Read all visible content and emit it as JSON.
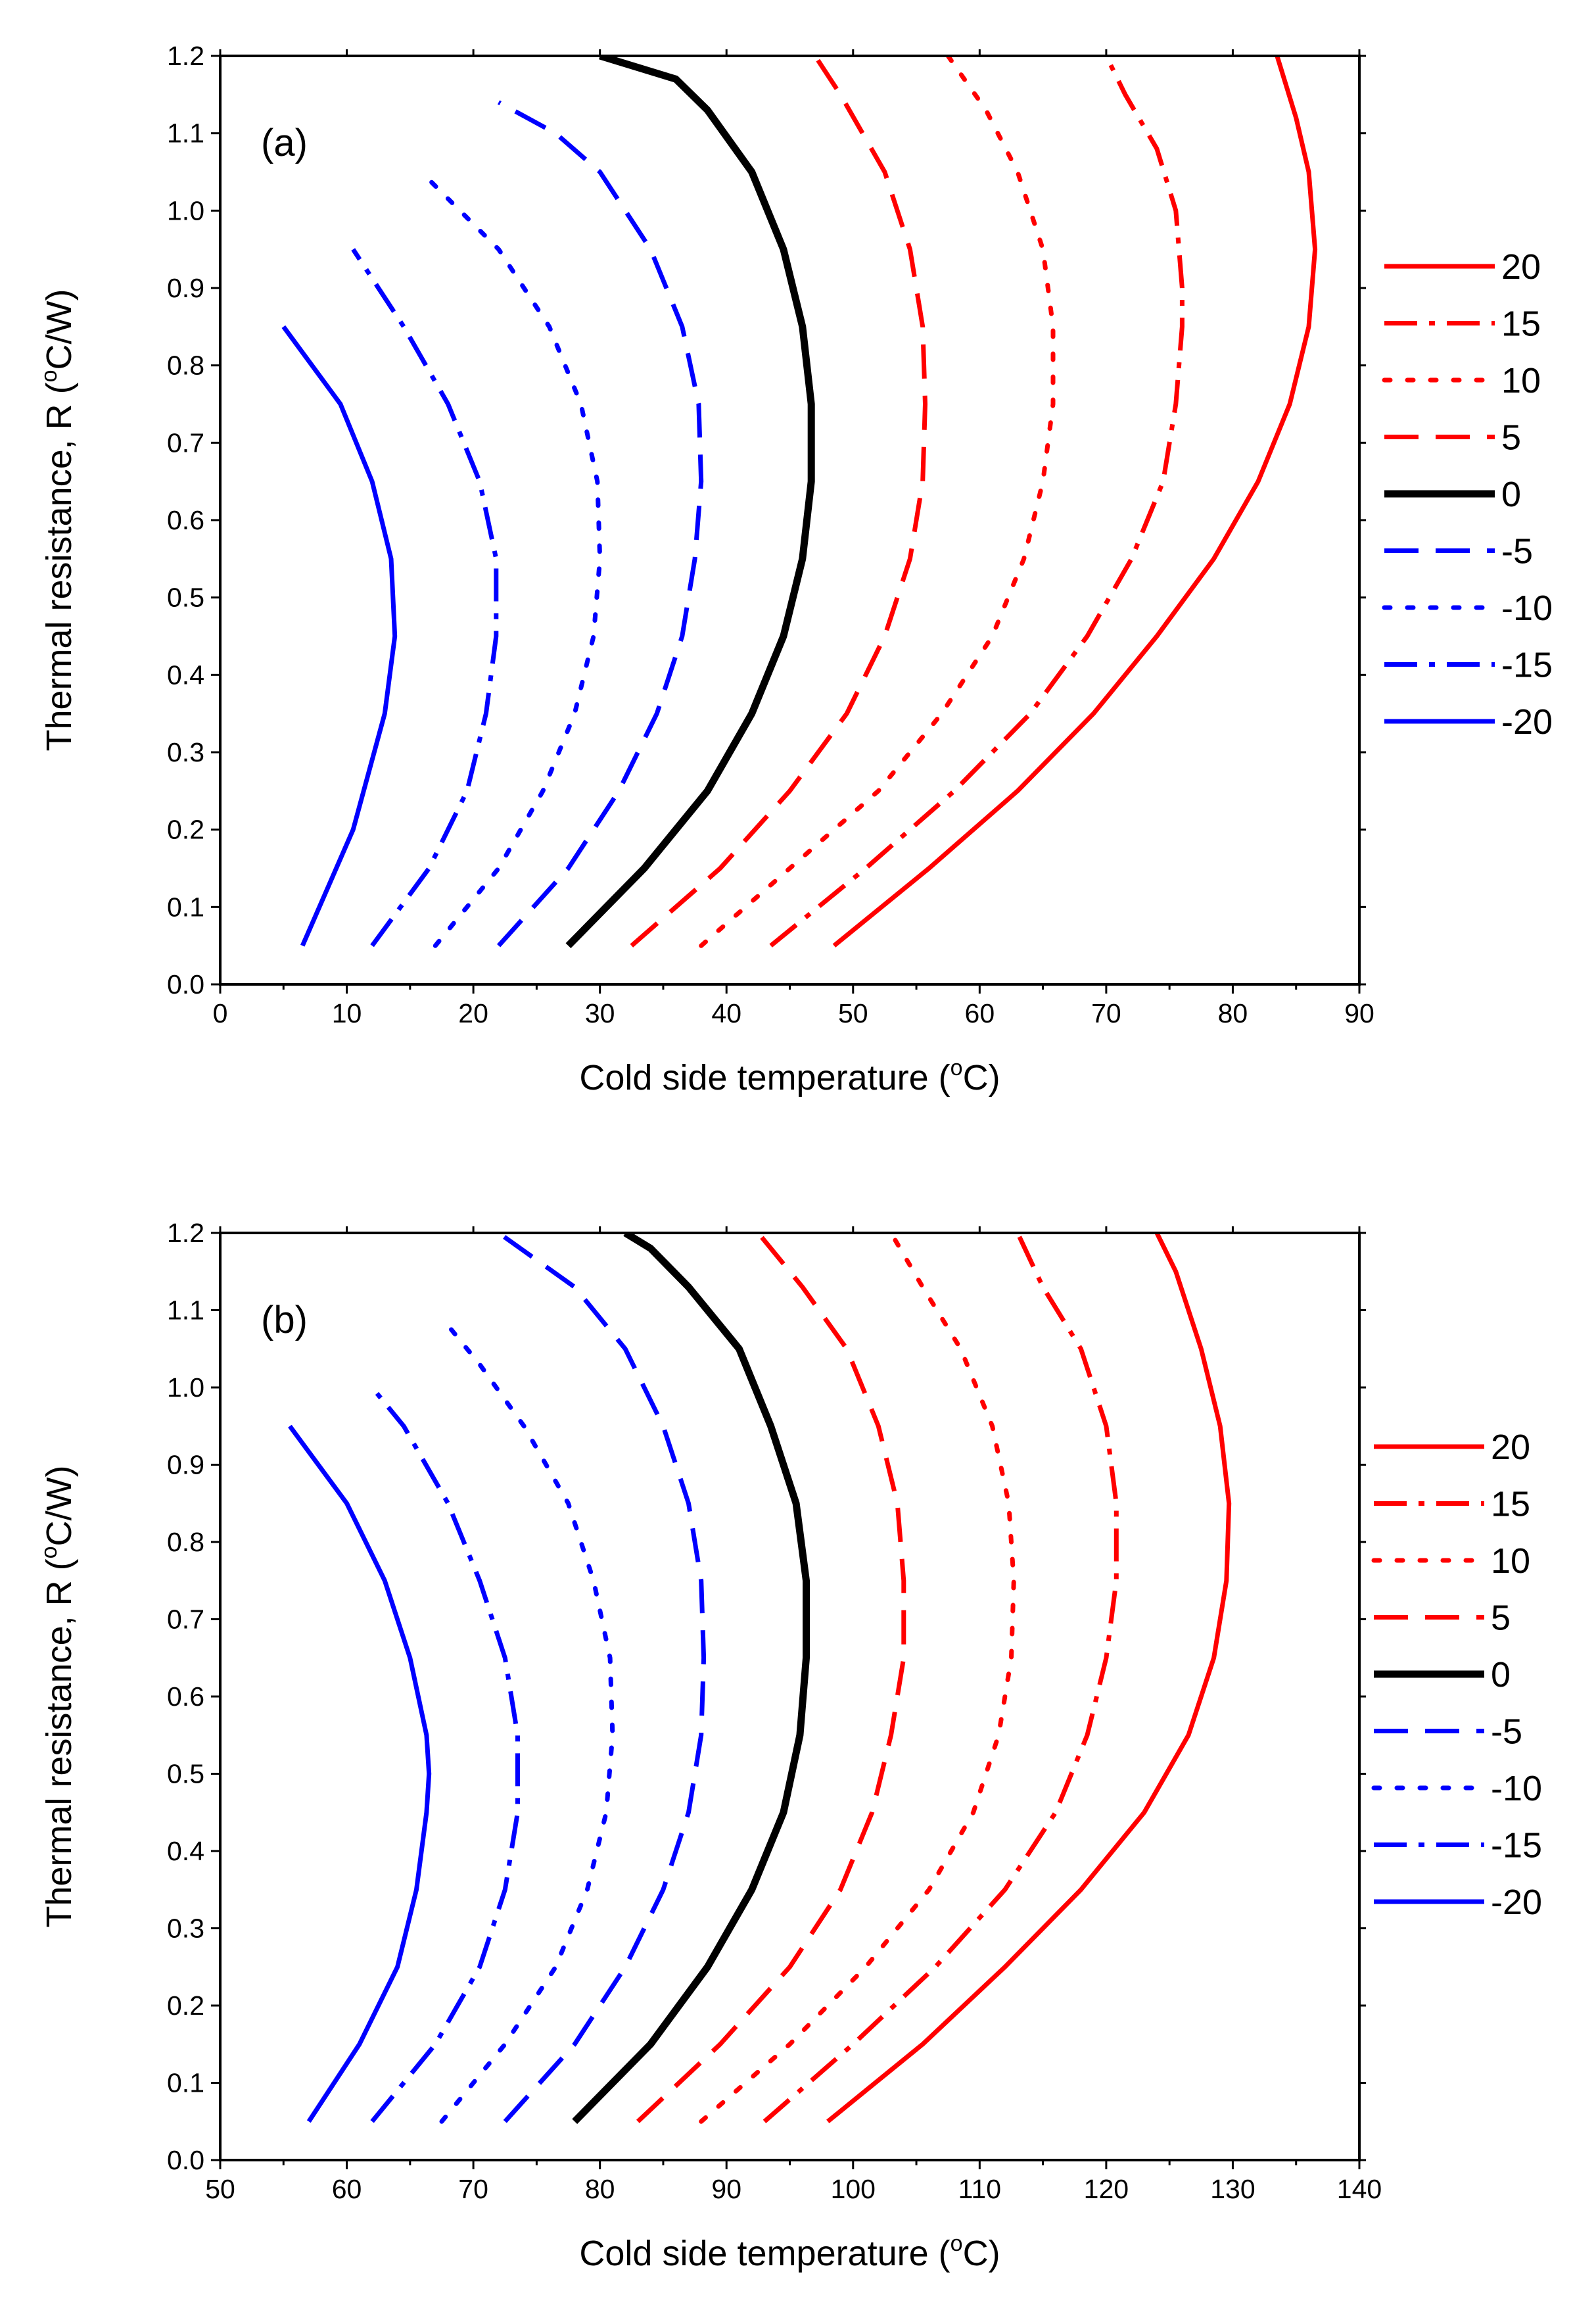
{
  "chart_data": [
    {
      "type": "line",
      "panel_label": "(a)",
      "xlabel_pre": "Cold side temperature (",
      "xlabel_sup": "o",
      "xlabel_post": "C)",
      "ylabel_pre": "Thermal resistance, R (",
      "ylabel_sup": "o",
      "ylabel_post": "C/W)",
      "xlim": [
        0,
        90
      ],
      "ylim": [
        0.0,
        1.2
      ],
      "x_ticks": [
        "0",
        "10",
        "20",
        "30",
        "40",
        "50",
        "60",
        "70",
        "80",
        "90"
      ],
      "y_ticks": [
        "0.0",
        "0.1",
        "0.2",
        "0.3",
        "0.4",
        "0.5",
        "0.6",
        "0.7",
        "0.8",
        "0.9",
        "1.0",
        "1.1",
        "1.2"
      ],
      "legend_position": "right",
      "series": [
        {
          "name": "20",
          "color": "#ff0000",
          "style": "solid",
          "points": [
            [
              48.5,
              0.05
            ],
            [
              56,
              0.15
            ],
            [
              63,
              0.25
            ],
            [
              69,
              0.35
            ],
            [
              74,
              0.45
            ],
            [
              78.5,
              0.55
            ],
            [
              82,
              0.65
            ],
            [
              84.5,
              0.75
            ],
            [
              86,
              0.85
            ],
            [
              86.5,
              0.95
            ],
            [
              86,
              1.05
            ],
            [
              85,
              1.12
            ],
            [
              83.5,
              1.2
            ]
          ]
        },
        {
          "name": "15",
          "color": "#ff0000",
          "style": "dashdot",
          "points": [
            [
              43.5,
              0.05
            ],
            [
              51,
              0.15
            ],
            [
              58,
              0.25
            ],
            [
              64,
              0.35
            ],
            [
              68.5,
              0.45
            ],
            [
              72,
              0.55
            ],
            [
              74.5,
              0.65
            ],
            [
              75.5,
              0.75
            ],
            [
              76,
              0.85
            ],
            [
              76,
              0.9
            ],
            [
              75.5,
              1.0
            ],
            [
              74,
              1.08
            ],
            [
              71.5,
              1.15
            ],
            [
              70,
              1.2
            ]
          ]
        },
        {
          "name": "10",
          "color": "#ff0000",
          "style": "dotted",
          "points": [
            [
              38,
              0.05
            ],
            [
              45,
              0.15
            ],
            [
              52,
              0.25
            ],
            [
              57,
              0.35
            ],
            [
              61,
              0.45
            ],
            [
              63.5,
              0.55
            ],
            [
              65,
              0.65
            ],
            [
              65.8,
              0.75
            ],
            [
              65.8,
              0.85
            ],
            [
              65,
              0.95
            ],
            [
              63,
              1.05
            ],
            [
              60.5,
              1.13
            ],
            [
              57.5,
              1.2
            ]
          ]
        },
        {
          "name": "5",
          "color": "#ff0000",
          "style": "dashed",
          "points": [
            [
              32.5,
              0.05
            ],
            [
              39.5,
              0.15
            ],
            [
              45,
              0.25
            ],
            [
              49.5,
              0.35
            ],
            [
              52.5,
              0.45
            ],
            [
              54.5,
              0.55
            ],
            [
              55.5,
              0.65
            ],
            [
              55.7,
              0.75
            ],
            [
              55.5,
              0.85
            ],
            [
              54.5,
              0.95
            ],
            [
              52.5,
              1.05
            ],
            [
              49,
              1.15
            ],
            [
              47,
              1.2
            ]
          ]
        },
        {
          "name": "0",
          "color": "#000000",
          "style": "solid",
          "points": [
            [
              27.5,
              0.05
            ],
            [
              33.5,
              0.15
            ],
            [
              38.5,
              0.25
            ],
            [
              42,
              0.35
            ],
            [
              44.5,
              0.45
            ],
            [
              46,
              0.55
            ],
            [
              46.7,
              0.65
            ],
            [
              46.7,
              0.75
            ],
            [
              46,
              0.85
            ],
            [
              44.5,
              0.95
            ],
            [
              42,
              1.05
            ],
            [
              38.5,
              1.13
            ],
            [
              36,
              1.17
            ],
            [
              30,
              1.2
            ]
          ]
        },
        {
          "name": "-5",
          "color": "#0000ff",
          "style": "dashed",
          "points": [
            [
              22,
              0.05
            ],
            [
              27.5,
              0.15
            ],
            [
              31.5,
              0.25
            ],
            [
              34.5,
              0.35
            ],
            [
              36.5,
              0.45
            ],
            [
              37.5,
              0.55
            ],
            [
              38,
              0.65
            ],
            [
              37.8,
              0.75
            ],
            [
              36.5,
              0.85
            ],
            [
              34,
              0.95
            ],
            [
              30,
              1.05
            ],
            [
              26.5,
              1.1
            ],
            [
              22,
              1.14
            ]
          ]
        },
        {
          "name": "-10",
          "color": "#0000ff",
          "style": "dotted",
          "points": [
            [
              17,
              0.05
            ],
            [
              22,
              0.15
            ],
            [
              25.5,
              0.25
            ],
            [
              28,
              0.35
            ],
            [
              29.5,
              0.45
            ],
            [
              30,
              0.55
            ],
            [
              29.8,
              0.65
            ],
            [
              28.5,
              0.75
            ],
            [
              26,
              0.85
            ],
            [
              22,
              0.95
            ],
            [
              16.5,
              1.04
            ]
          ]
        },
        {
          "name": "-15",
          "color": "#0000ff",
          "style": "dashdot",
          "points": [
            [
              12,
              0.05
            ],
            [
              16.5,
              0.15
            ],
            [
              19.5,
              0.25
            ],
            [
              21,
              0.35
            ],
            [
              21.8,
              0.45
            ],
            [
              21.8,
              0.55
            ],
            [
              20.5,
              0.65
            ],
            [
              18,
              0.75
            ],
            [
              14.5,
              0.85
            ],
            [
              10.5,
              0.95
            ]
          ]
        },
        {
          "name": "-20",
          "color": "#0000ff",
          "style": "solid",
          "points": [
            [
              6.5,
              0.05
            ],
            [
              10.5,
              0.2
            ],
            [
              13,
              0.35
            ],
            [
              13.8,
              0.45
            ],
            [
              13.5,
              0.55
            ],
            [
              12,
              0.65
            ],
            [
              9.5,
              0.75
            ],
            [
              5,
              0.85
            ]
          ]
        }
      ]
    },
    {
      "type": "line",
      "panel_label": "(b)",
      "xlabel_pre": "Cold side temperature (",
      "xlabel_sup": "o",
      "xlabel_post": "C)",
      "ylabel_pre": "Thermal resistance, R (",
      "ylabel_sup": "o",
      "ylabel_post": "C/W)",
      "xlim": [
        50,
        140
      ],
      "ylim": [
        0.0,
        1.2
      ],
      "x_ticks": [
        "50",
        "60",
        "70",
        "80",
        "90",
        "100",
        "110",
        "120",
        "130",
        "140"
      ],
      "y_ticks": [
        "0.0",
        "0.1",
        "0.2",
        "0.3",
        "0.4",
        "0.5",
        "0.6",
        "0.7",
        "0.8",
        "0.9",
        "1.0",
        "1.1",
        "1.2"
      ],
      "legend_position": "right",
      "series": [
        {
          "name": "20",
          "color": "#ff0000",
          "style": "solid",
          "points": [
            [
              98,
              0.05
            ],
            [
              105.5,
              0.15
            ],
            [
              112,
              0.25
            ],
            [
              118,
              0.35
            ],
            [
              123,
              0.45
            ],
            [
              126.5,
              0.55
            ],
            [
              128.5,
              0.65
            ],
            [
              129.5,
              0.75
            ],
            [
              129.7,
              0.85
            ],
            [
              129,
              0.95
            ],
            [
              127.5,
              1.05
            ],
            [
              125.5,
              1.15
            ],
            [
              124,
              1.2
            ]
          ]
        },
        {
          "name": "15",
          "color": "#ff0000",
          "style": "dashdot",
          "points": [
            [
              93,
              0.05
            ],
            [
              100,
              0.15
            ],
            [
              106.5,
              0.25
            ],
            [
              112,
              0.35
            ],
            [
              116,
              0.45
            ],
            [
              118.5,
              0.55
            ],
            [
              120,
              0.65
            ],
            [
              120.8,
              0.75
            ],
            [
              120.8,
              0.85
            ],
            [
              120,
              0.95
            ],
            [
              118,
              1.05
            ],
            [
              115,
              1.13
            ],
            [
              113,
              1.2
            ]
          ]
        },
        {
          "name": "10",
          "color": "#ff0000",
          "style": "dotted",
          "points": [
            [
              88,
              0.05
            ],
            [
              95,
              0.15
            ],
            [
              101,
              0.25
            ],
            [
              106,
              0.35
            ],
            [
              109.5,
              0.45
            ],
            [
              111.5,
              0.55
            ],
            [
              112.5,
              0.65
            ],
            [
              112.7,
              0.75
            ],
            [
              112.3,
              0.85
            ],
            [
              111,
              0.95
            ],
            [
              108.5,
              1.05
            ],
            [
              105.5,
              1.13
            ],
            [
              103,
              1.2
            ]
          ]
        },
        {
          "name": "5",
          "color": "#ff0000",
          "style": "dashed",
          "points": [
            [
              83,
              0.05
            ],
            [
              89.5,
              0.15
            ],
            [
              95,
              0.25
            ],
            [
              99,
              0.35
            ],
            [
              101.5,
              0.45
            ],
            [
              103,
              0.55
            ],
            [
              104,
              0.65
            ],
            [
              104,
              0.75
            ],
            [
              103.5,
              0.85
            ],
            [
              102,
              0.95
            ],
            [
              99.5,
              1.05
            ],
            [
              96,
              1.13
            ],
            [
              92.5,
              1.2
            ]
          ]
        },
        {
          "name": "0",
          "color": "#000000",
          "style": "solid",
          "points": [
            [
              78,
              0.05
            ],
            [
              84,
              0.15
            ],
            [
              88.5,
              0.25
            ],
            [
              92,
              0.35
            ],
            [
              94.5,
              0.45
            ],
            [
              95.8,
              0.55
            ],
            [
              96.3,
              0.65
            ],
            [
              96.3,
              0.75
            ],
            [
              95.5,
              0.85
            ],
            [
              93.5,
              0.95
            ],
            [
              91,
              1.05
            ],
            [
              87,
              1.13
            ],
            [
              84,
              1.18
            ],
            [
              82,
              1.2
            ]
          ]
        },
        {
          "name": "-5",
          "color": "#0000ff",
          "style": "dashed",
          "points": [
            [
              72.5,
              0.05
            ],
            [
              78,
              0.15
            ],
            [
              82,
              0.25
            ],
            [
              85,
              0.35
            ],
            [
              87,
              0.45
            ],
            [
              88,
              0.55
            ],
            [
              88.2,
              0.65
            ],
            [
              88,
              0.75
            ],
            [
              87,
              0.85
            ],
            [
              85,
              0.95
            ],
            [
              82,
              1.05
            ],
            [
              78,
              1.13
            ],
            [
              72,
              1.2
            ]
          ]
        },
        {
          "name": "-10",
          "color": "#0000ff",
          "style": "dotted",
          "points": [
            [
              67.5,
              0.05
            ],
            [
              72.5,
              0.15
            ],
            [
              76.5,
              0.25
            ],
            [
              79,
              0.35
            ],
            [
              80.5,
              0.45
            ],
            [
              81,
              0.55
            ],
            [
              80.8,
              0.65
            ],
            [
              79.5,
              0.75
            ],
            [
              77.5,
              0.85
            ],
            [
              74,
              0.95
            ],
            [
              70.5,
              1.03
            ],
            [
              67.5,
              1.09
            ]
          ]
        },
        {
          "name": "-15",
          "color": "#0000ff",
          "style": "dashdot",
          "points": [
            [
              62,
              0.05
            ],
            [
              67,
              0.15
            ],
            [
              70.5,
              0.25
            ],
            [
              72.5,
              0.35
            ],
            [
              73.5,
              0.45
            ],
            [
              73.5,
              0.55
            ],
            [
              72.5,
              0.65
            ],
            [
              70.5,
              0.75
            ],
            [
              68,
              0.85
            ],
            [
              64.5,
              0.95
            ],
            [
              62,
              1.0
            ]
          ]
        },
        {
          "name": "-20",
          "color": "#0000ff",
          "style": "solid",
          "points": [
            [
              57,
              0.05
            ],
            [
              61,
              0.15
            ],
            [
              64,
              0.25
            ],
            [
              65.5,
              0.35
            ],
            [
              66.3,
              0.45
            ],
            [
              66.5,
              0.5
            ],
            [
              66.3,
              0.55
            ],
            [
              65,
              0.65
            ],
            [
              63,
              0.75
            ],
            [
              60,
              0.85
            ],
            [
              55.5,
              0.95
            ]
          ]
        }
      ]
    }
  ]
}
